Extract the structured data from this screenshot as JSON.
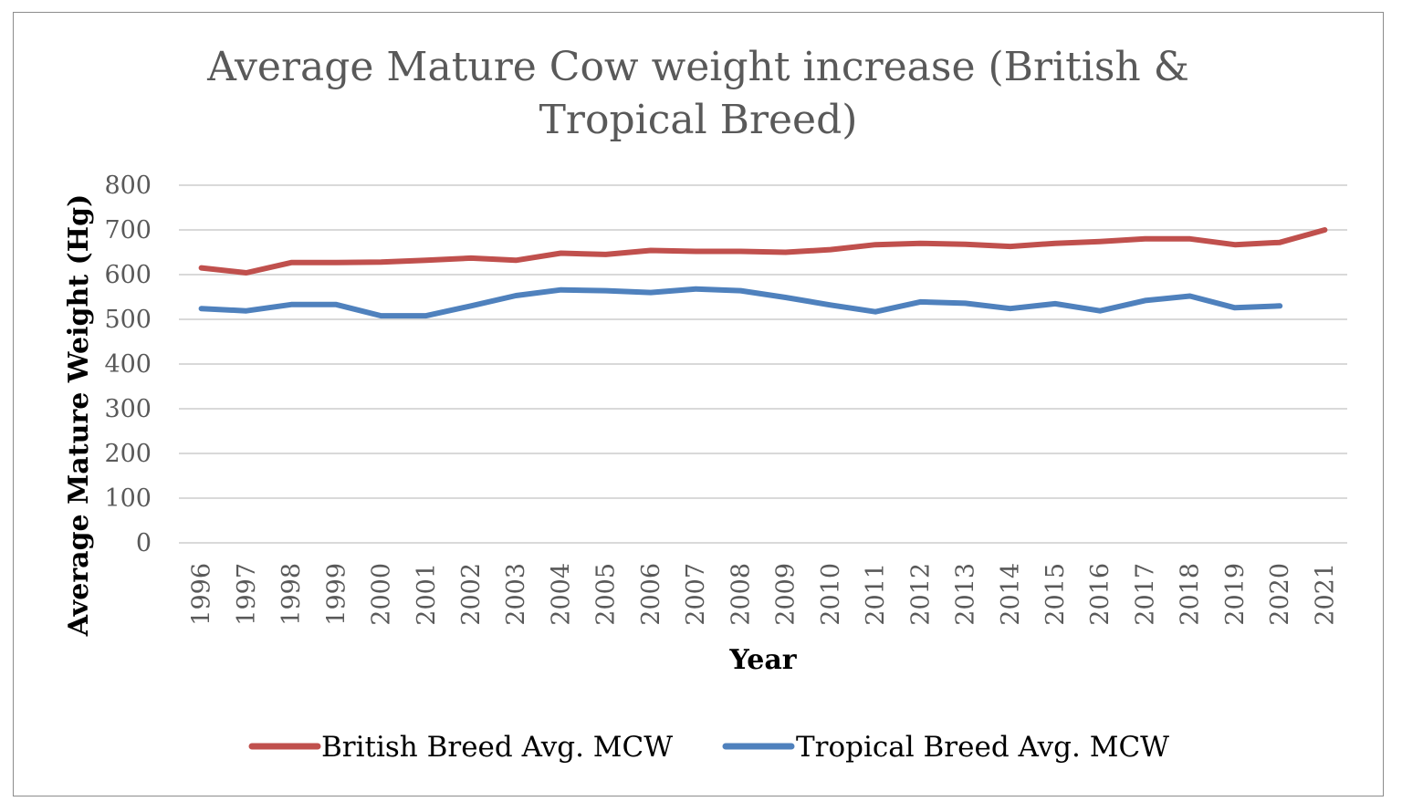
{
  "chart_data": {
    "type": "line",
    "title": "Average Mature Cow weight increase (British & Tropical Breed)",
    "title_lines": [
      "Average Mature Cow weight increase (British &",
      "Tropical Breed)"
    ],
    "xlabel": "Year",
    "ylabel": "Average Mature Weight (Hg)",
    "ylim": [
      0,
      800
    ],
    "yticks": [
      "0",
      "100",
      "200",
      "300",
      "400",
      "500",
      "600",
      "700",
      "800"
    ],
    "ytick_values": [
      0,
      100,
      200,
      300,
      400,
      500,
      600,
      700,
      800
    ],
    "grid": "horizontal",
    "legend_position": "bottom",
    "categories": [
      "1996",
      "1997",
      "1998",
      "1999",
      "2000",
      "2001",
      "2002",
      "2003",
      "2004",
      "2005",
      "2006",
      "2007",
      "2008",
      "2009",
      "2010",
      "2011",
      "2012",
      "2013",
      "2014",
      "2015",
      "2016",
      "2017",
      "2018",
      "2019",
      "2020",
      "2021"
    ],
    "series": [
      {
        "name": "British Breed Avg. MCW",
        "color": "#c0504d",
        "values": [
          615,
          604,
          627,
          627,
          628,
          632,
          637,
          632,
          648,
          645,
          654,
          652,
          652,
          650,
          656,
          667,
          670,
          668,
          663,
          670,
          674,
          680,
          680,
          667,
          672,
          700
        ]
      },
      {
        "name": "Tropical Breed Avg. MCW",
        "color": "#4f81bd",
        "values": [
          524,
          519,
          533,
          533,
          508,
          508,
          530,
          553,
          566,
          564,
          560,
          568,
          564,
          549,
          532,
          517,
          539,
          536,
          524,
          535,
          519,
          542,
          552,
          526,
          530,
          null
        ]
      }
    ]
  }
}
